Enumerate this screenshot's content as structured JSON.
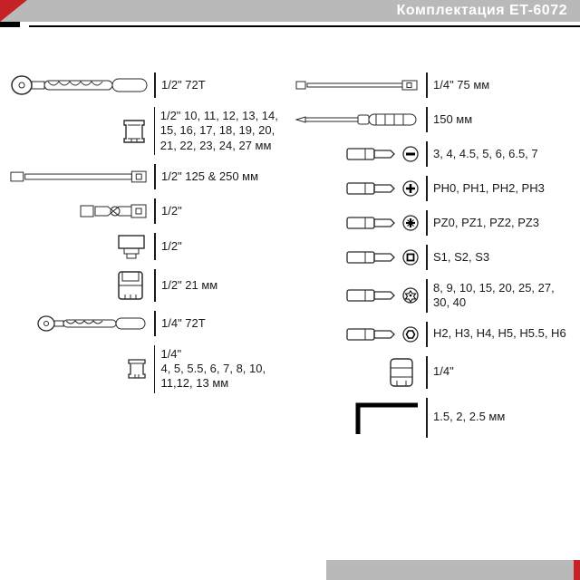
{
  "header": {
    "title": "Комплектация  ET-6072"
  },
  "colors": {
    "accent_red": "#c62127",
    "header_grey": "#b9b9b9",
    "text": "#1a1a1a",
    "stroke": "#2a2a2a"
  },
  "left_items": [
    {
      "key": "ratchet12",
      "icon": "ratchet-large",
      "label": "1/2\" 72T"
    },
    {
      "key": "sockets12",
      "icon": "socket-short",
      "label": "1/2\" 10, 11, 12, 13, 14, 15, 16, 17, 18, 19, 20, 21, 22, 23, 24, 27 мм"
    },
    {
      "key": "extension12",
      "icon": "extension-bar",
      "label": "1/2\" 125 & 250 мм"
    },
    {
      "key": "ujoint12",
      "icon": "universal-joint",
      "label": "1/2\""
    },
    {
      "key": "adapter12",
      "icon": "adapter",
      "label": "1/2\""
    },
    {
      "key": "spark12",
      "icon": "spark-socket",
      "label": "1/2\" 21 мм"
    },
    {
      "key": "ratchet14",
      "icon": "ratchet-small",
      "label": "1/4\" 72T"
    },
    {
      "key": "sockets14",
      "icon": "socket-small",
      "label": "1/4\"\n4, 5, 5.5, 6, 7, 8, 10, 11,12, 13 мм"
    }
  ],
  "right_items": [
    {
      "key": "ext14",
      "icon": "extension-small",
      "label": "1/4\" 75 мм"
    },
    {
      "key": "driver",
      "icon": "screwdriver",
      "label": "150 мм"
    },
    {
      "key": "slot",
      "icon": "bit-slot",
      "label": "3, 4, 4.5, 5, 6, 6.5, 7"
    },
    {
      "key": "ph",
      "icon": "bit-ph",
      "label": "PH0, PH1, PH2, PH3"
    },
    {
      "key": "pz",
      "icon": "bit-pz",
      "label": "PZ0, PZ1, PZ2, PZ3"
    },
    {
      "key": "sq",
      "icon": "bit-sq",
      "label": "S1, S2, S3"
    },
    {
      "key": "torx",
      "icon": "bit-torx",
      "label": "8, 9, 10, 15, 20, 25, 27, 30, 40"
    },
    {
      "key": "hex",
      "icon": "bit-hex",
      "label": "H2, H3, H4, H5, H5.5, H6"
    },
    {
      "key": "bitholder",
      "icon": "bit-holder",
      "label": "1/4\""
    },
    {
      "key": "hexkey",
      "icon": "hex-key",
      "label": "1.5, 2, 2.5 мм"
    }
  ]
}
